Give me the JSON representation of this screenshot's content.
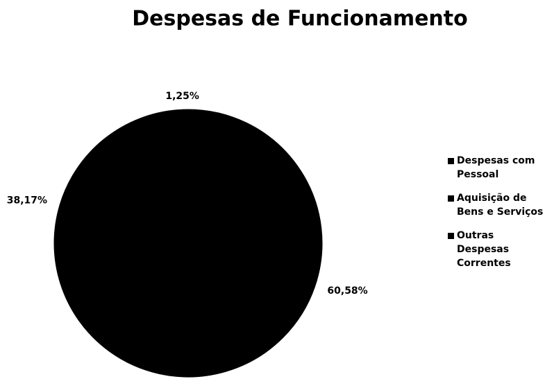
{
  "chart_data": {
    "type": "pie",
    "title": "Despesas de Funcionamento",
    "categories": [
      "Despesas com Pessoal",
      "Aquisição de Bens e Serviços",
      "Outras Despesas Correntes"
    ],
    "values": [
      60.58,
      38.17,
      1.25
    ],
    "value_labels": [
      "60,58%",
      "38,17%",
      "1,25%"
    ],
    "colors": [
      "#000000",
      "#000000",
      "#000000"
    ],
    "legend": "right"
  }
}
